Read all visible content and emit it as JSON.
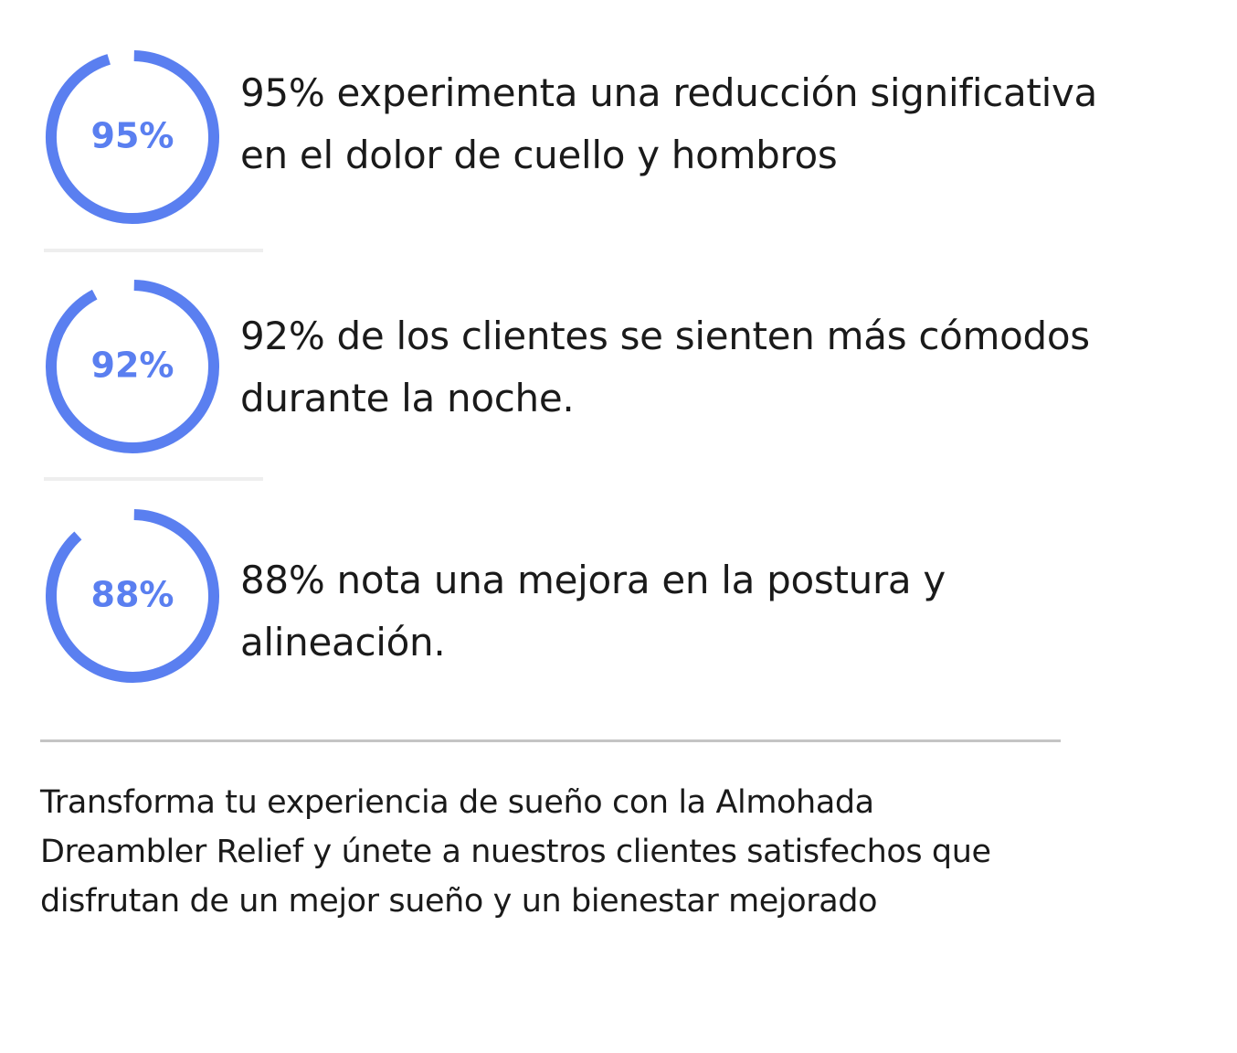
{
  "stats": [
    {
      "label": "95%",
      "value": 95,
      "text_line_1": "95% experimenta una reducción significativa",
      "text_line_2": "en el dolor de cuello y hombros"
    },
    {
      "label": "92%",
      "value": 92,
      "text_line_1": "92% de los clientes se sienten más cómodos",
      "text_line_2": "durante la noche."
    },
    {
      "label": "88%",
      "value": 88,
      "text_line_1": "88% nota una mejora en la postura y",
      "text_line_2": "alineación."
    }
  ],
  "footer": {
    "line_1": "Transforma tu experiencia de sueño con la Almohada",
    "line_2": "Dreambler Relief y únete a nuestros clientes satisfechos que",
    "line_3": "disfrutan de un mejor sueño y un bienestar mejorado"
  },
  "colors": {
    "ring": "#5a7ff0",
    "text": "#1a1a1a",
    "divider": "#c4c4c4"
  }
}
